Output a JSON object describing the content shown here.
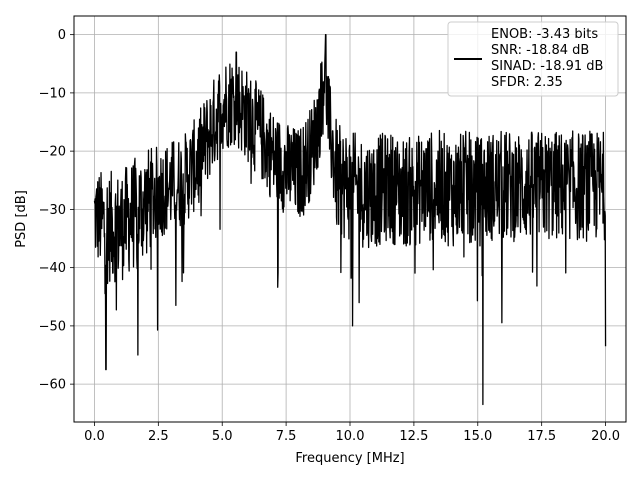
{
  "chart_data": {
    "type": "line",
    "xlabel": "Frequency [MHz]",
    "ylabel": "PSD [dB]",
    "xlim": [
      -0.8,
      20.8
    ],
    "ylim": [
      -66.5,
      3.2
    ],
    "xticks": [
      0.0,
      2.5,
      5.0,
      7.5,
      10.0,
      12.5,
      15.0,
      17.5,
      20.0
    ],
    "xtick_labels": [
      "0.0",
      "2.5",
      "5.0",
      "7.5",
      "10.0",
      "12.5",
      "15.0",
      "17.5",
      "20.0"
    ],
    "yticks": [
      0,
      -10,
      -20,
      -30,
      -40,
      -50,
      -60
    ],
    "ytick_labels": [
      "0",
      "−10",
      "−20",
      "−30",
      "−40",
      "−50",
      "−60"
    ],
    "grid": true,
    "legend_position": "top-right",
    "line_color": "#000000",
    "series": [
      {
        "legend_lines": [
          "ENOB: -3.43 bits",
          "SNR: -18.84 dB",
          "SINAD: -18.91 dB",
          "SFDR: 2.35"
        ],
        "envelope_x": [
          0.0,
          0.5,
          1.0,
          1.5,
          2.0,
          2.5,
          3.0,
          3.5,
          4.0,
          4.5,
          5.0,
          5.5,
          6.0,
          6.5,
          7.0,
          7.5,
          8.0,
          8.5,
          8.8,
          9.0,
          9.2,
          9.5,
          10.0,
          10.5,
          11.0,
          11.5,
          12.0,
          12.5,
          13.0,
          13.5,
          14.0,
          14.5,
          15.0,
          15.5,
          16.0,
          16.5,
          17.0,
          17.5,
          18.0,
          18.5,
          19.0,
          19.5,
          20.0
        ],
        "envelope_mean_db": [
          -31,
          -33,
          -33,
          -31,
          -29,
          -27,
          -26,
          -25,
          -22,
          -17,
          -12,
          -11,
          -14,
          -17,
          -21,
          -23,
          -24,
          -20,
          -14,
          -6,
          -16,
          -25,
          -26,
          -27,
          -27,
          -26,
          -27,
          -27,
          -26,
          -26,
          -27,
          -26,
          -27,
          -26,
          -26,
          -26,
          -26,
          -26,
          -26,
          -26,
          -26,
          -26,
          -26
        ],
        "envelope_spread_db": [
          5,
          6,
          6,
          6,
          6,
          5,
          5,
          5,
          5,
          5,
          5,
          5,
          5,
          5,
          5,
          5,
          5,
          5,
          5,
          4,
          5,
          6,
          6,
          6,
          6,
          6,
          6,
          6,
          6,
          6,
          6,
          6,
          6,
          6,
          6,
          6,
          6,
          6,
          6,
          6,
          6,
          6,
          6
        ],
        "peaks": [
          {
            "x": 9.05,
            "y": 0.0
          },
          {
            "x": 5.55,
            "y": -3.0
          }
        ],
        "dips": [
          {
            "x": 0.45,
            "y": -57.5
          },
          {
            "x": 1.7,
            "y": -55.0
          },
          {
            "x": 15.2,
            "y": -63.5
          },
          {
            "x": 20.0,
            "y": -53.5
          },
          {
            "x": 10.1,
            "y": -50.0
          }
        ]
      }
    ]
  }
}
